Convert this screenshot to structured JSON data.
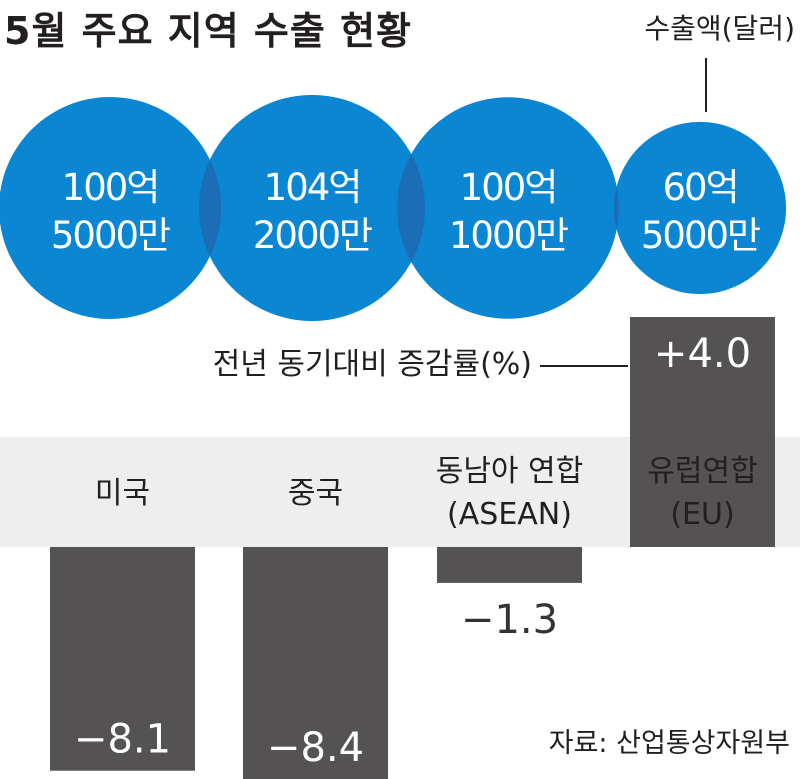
{
  "chart_data": {
    "type": "bar",
    "title": "5월 주요 지역 수출 현황",
    "export_label": "수출액(달러)",
    "change_label": "전년 동기대비 증감률(%)",
    "source": "자료: 산업통상자원부",
    "categories": [
      {
        "line1": "미국",
        "line2": ""
      },
      {
        "line1": "중국",
        "line2": ""
      },
      {
        "line1": "동남아 연합",
        "line2": "(ASEAN)"
      },
      {
        "line1": "유럽연합",
        "line2": "(EU)"
      }
    ],
    "exports": [
      {
        "line1": "100억",
        "line2": "5000만",
        "value": 10050000000
      },
      {
        "line1": "104억",
        "line2": "2000만",
        "value": 10420000000
      },
      {
        "line1": "100억",
        "line2": "1000만",
        "value": 10010000000
      },
      {
        "line1": "60억",
        "line2": "5000만",
        "value": 6050000000
      }
    ],
    "changes": [
      -8.1,
      -8.4,
      -1.3,
      4.0
    ],
    "change_labels": [
      "−8.1",
      "−8.4",
      "−1.3",
      "+4.0"
    ],
    "colors": {
      "bubble": "#0a86d2",
      "bubble_overlap": "#1b6db6",
      "bar": "#555253",
      "band": "#eeeeee"
    }
  }
}
